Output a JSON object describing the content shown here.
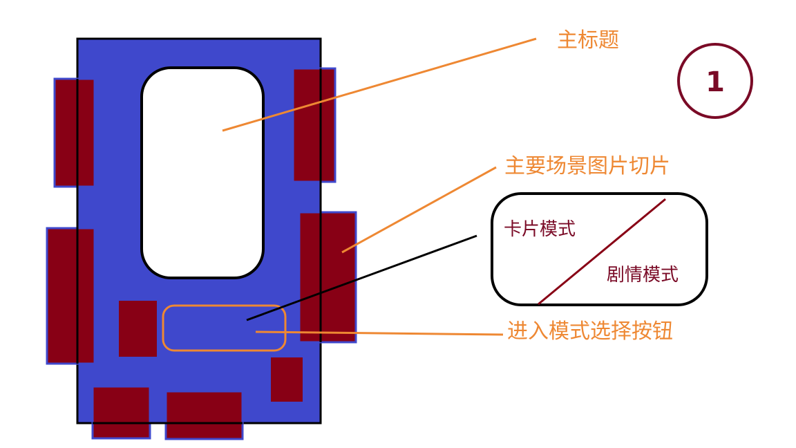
{
  "annotations": {
    "main_title": "主标题",
    "scene_slices": "主要场景图片切片",
    "mode_button": "进入模式选择按钮"
  },
  "mode_popup": {
    "card_mode": "卡片模式",
    "story_mode": "剧情模式"
  },
  "badge": {
    "number": "1"
  },
  "colors": {
    "panel_blue": "#3F48CC",
    "slice_maroon": "#880015",
    "leader_orange": "#EE8833",
    "text_maroon": "#7A0A26",
    "outline": "#000000"
  }
}
